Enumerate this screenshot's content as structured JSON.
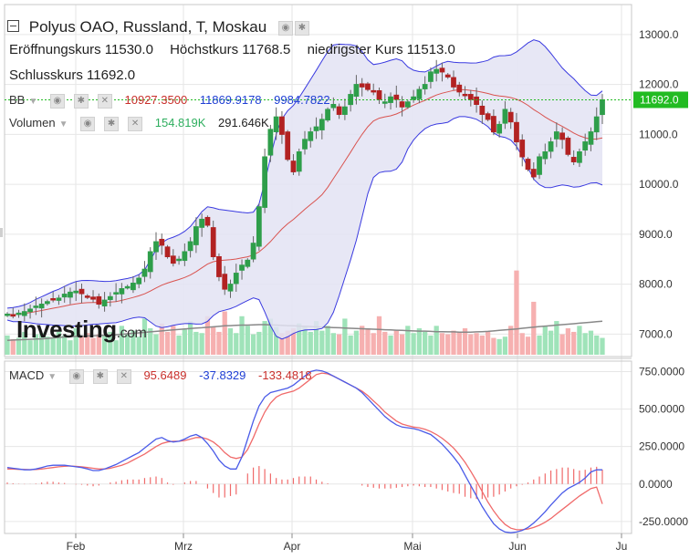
{
  "header": {
    "title": "Polyus OAO, Russland, T, Moskau",
    "open_label": "Eröffnungskurs",
    "open_value": "11530.0",
    "high_label": "Höchstkurs",
    "high_value": "11768.5",
    "low_label": "niedrigster Kurs",
    "low_value": "11513.0",
    "close_label": "Schlusskurs",
    "close_value": "11692.0"
  },
  "indicators": {
    "bb": {
      "label": "BB",
      "middle": "10927.3500",
      "upper": "11869.9178",
      "lower": "9984.7822"
    },
    "volume": {
      "label": "Volumen",
      "value1": "154.819K",
      "value2": "291.646K"
    },
    "macd": {
      "label": "MACD",
      "v1": "95.6489",
      "v2": "-37.8329",
      "v3": "-133.4818"
    }
  },
  "logo": {
    "text": "Investing",
    "suffix": ".com"
  },
  "colors": {
    "up": "#2e9e4a",
    "down": "#b22222",
    "band_fill": "#e3e3f3",
    "band_line": "#3a3ae0",
    "bb_mid": "#d9534f",
    "vol_up": "#9fe3b9",
    "vol_down": "#f6b0b0",
    "vol_ma": "#888888",
    "macd_line": "#4a5be8",
    "signal_line": "#f06a6a",
    "hist": "#f06a6a",
    "last_price": "#22bb22"
  },
  "chart_data": [
    {
      "type": "candlestick",
      "title": "Polyus OAO, Russland, T, Moskau",
      "x_labels": [
        "Feb",
        "Mrz",
        "Apr",
        "Mai",
        "Jun",
        "Ju"
      ],
      "y_ticks": [
        7000,
        8000,
        9000,
        10000,
        11000,
        12000,
        13000
      ],
      "y_tick_labels": [
        "7000.0",
        "8000.0",
        "9000.0",
        "10000.0",
        "11000.0",
        "12000.0",
        "13000.0"
      ],
      "ylim": [
        6550,
        13600
      ],
      "last_price": 11692.0,
      "last_price_label": "11692.0",
      "close": [
        7400,
        7380,
        7420,
        7450,
        7500,
        7560,
        7600,
        7650,
        7700,
        7720,
        7800,
        7840,
        7860,
        7810,
        7740,
        7700,
        7600,
        7680,
        7750,
        7830,
        7910,
        7950,
        8020,
        8120,
        8300,
        8650,
        8850,
        8780,
        8550,
        8420,
        8500,
        8650,
        8850,
        9150,
        9300,
        9180,
        8550,
        8150,
        7900,
        8000,
        8220,
        8380,
        8480,
        8820,
        9550,
        10550,
        11100,
        11350,
        11000,
        10500,
        10250,
        10650,
        10900,
        11050,
        11150,
        11300,
        11500,
        11600,
        11400,
        11550,
        11800,
        12000,
        11950,
        11900,
        11850,
        11700,
        11650,
        11750,
        11700,
        11550,
        11650,
        11750,
        11900,
        12000,
        12250,
        12300,
        12250,
        12150,
        11950,
        11850,
        11800,
        11700,
        11600,
        11400,
        11300,
        11050,
        11200,
        11500,
        11250,
        10850,
        10550,
        10300,
        10150,
        10550,
        10650,
        10850,
        11050,
        10900,
        10600,
        10450,
        10650,
        10850,
        11050,
        11350,
        11692
      ],
      "bb_upper_at_end": 11869.9178,
      "bb_middle_at_end": 10927.35,
      "bb_lower_at_end": 9984.7822
    },
    {
      "type": "bar",
      "name": "Volumen",
      "values": [
        80,
        65,
        70,
        95,
        60,
        85,
        90,
        75,
        70,
        95,
        80,
        60,
        110,
        75,
        90,
        70,
        85,
        80,
        95,
        60,
        120,
        85,
        100,
        75,
        150,
        110,
        85,
        130,
        95,
        120,
        80,
        105,
        140,
        95,
        90,
        160,
        115,
        95,
        180,
        110,
        90,
        160,
        120,
        85,
        95,
        140,
        150,
        115,
        90,
        100,
        110,
        130,
        120,
        95,
        140,
        100,
        120,
        90,
        85,
        150,
        80,
        100,
        120,
        110,
        90,
        160,
        95,
        80,
        100,
        85,
        120,
        90,
        110,
        95,
        80,
        120,
        90,
        85,
        100,
        95,
        110,
        85,
        90,
        80,
        95,
        70,
        65,
        75,
        120,
        350,
        90,
        75,
        220,
        80,
        120,
        100,
        140,
        85,
        110,
        95,
        120,
        90,
        100,
        80,
        70
      ],
      "ma": [
        60,
        61,
        62,
        63,
        64,
        65,
        66,
        68,
        70,
        72,
        74,
        75,
        76,
        77,
        78,
        79,
        80,
        81,
        82,
        83,
        85,
        87,
        89,
        91,
        93,
        95,
        97,
        99,
        101,
        103,
        105,
        107,
        109,
        111,
        112,
        114,
        116,
        118,
        120,
        121,
        122,
        123,
        123,
        124,
        125,
        125,
        124,
        123,
        122,
        121,
        120,
        119,
        118,
        117,
        116,
        115,
        114,
        113,
        112,
        111,
        110,
        109,
        108,
        107,
        106,
        105,
        104,
        103,
        102,
        101,
        100,
        99,
        98,
        98,
        97,
        96,
        96,
        95,
        95,
        94,
        94,
        94,
        95,
        96,
        97,
        99,
        101,
        103,
        105,
        107,
        110,
        112,
        115,
        117,
        119,
        121,
        123,
        125,
        127,
        129,
        131,
        133,
        135,
        137,
        139
      ]
    },
    {
      "type": "line",
      "name": "MACD",
      "y_ticks": [
        -250,
        0,
        250,
        500,
        750
      ],
      "y_tick_labels": [
        "-250.0000",
        "0.0000",
        "250.0000",
        "500.0000",
        "750.0000"
      ],
      "ylim": [
        -330,
        820
      ],
      "macd": [
        110,
        105,
        100,
        95,
        95,
        100,
        110,
        120,
        125,
        125,
        125,
        120,
        115,
        110,
        100,
        90,
        90,
        100,
        115,
        130,
        150,
        170,
        190,
        210,
        240,
        270,
        300,
        310,
        290,
        280,
        285,
        300,
        320,
        330,
        310,
        270,
        220,
        160,
        120,
        100,
        100,
        180,
        300,
        420,
        520,
        580,
        610,
        620,
        630,
        640,
        660,
        690,
        720,
        750,
        760,
        755,
        740,
        720,
        700,
        680,
        660,
        640,
        610,
        570,
        530,
        490,
        450,
        420,
        395,
        380,
        375,
        370,
        360,
        345,
        330,
        300,
        265,
        225,
        180,
        130,
        60,
        -10,
        -80,
        -150,
        -210,
        -265,
        -300,
        -320,
        -325,
        -320,
        -310,
        -290,
        -260,
        -225,
        -185,
        -140,
        -100,
        -60,
        -30,
        -10,
        10,
        40,
        80,
        95,
        95
      ],
      "signal": [
        100,
        100,
        98,
        97,
        96,
        97,
        100,
        105,
        110,
        115,
        118,
        120,
        118,
        115,
        110,
        105,
        100,
        100,
        105,
        115,
        125,
        140,
        160,
        180,
        200,
        225,
        250,
        270,
        280,
        285,
        285,
        290,
        300,
        310,
        310,
        300,
        280,
        250,
        210,
        180,
        170,
        180,
        230,
        310,
        400,
        480,
        540,
        580,
        600,
        610,
        620,
        640,
        670,
        700,
        730,
        740,
        735,
        720,
        700,
        680,
        660,
        640,
        620,
        590,
        555,
        520,
        480,
        450,
        420,
        400,
        390,
        380,
        375,
        365,
        350,
        330,
        305,
        275,
        240,
        195,
        145,
        85,
        20,
        -50,
        -120,
        -180,
        -230,
        -270,
        -295,
        -305,
        -305,
        -300,
        -290,
        -275,
        -255,
        -230,
        -200,
        -170,
        -140,
        -110,
        -80,
        -55,
        -30,
        -20,
        -133
      ],
      "histogram": [
        10,
        5,
        2,
        -2,
        -1,
        3,
        10,
        15,
        15,
        10,
        7,
        0,
        -3,
        -5,
        -10,
        -15,
        -10,
        0,
        10,
        15,
        25,
        30,
        30,
        30,
        40,
        45,
        50,
        40,
        10,
        -5,
        0,
        10,
        20,
        20,
        0,
        -30,
        -60,
        -90,
        -90,
        -80,
        -70,
        0,
        70,
        110,
        120,
        100,
        70,
        40,
        30,
        30,
        40,
        50,
        50,
        50,
        30,
        15,
        5,
        0,
        0,
        0,
        0,
        0,
        -10,
        -20,
        -25,
        -30,
        -30,
        -30,
        -25,
        -20,
        -15,
        -10,
        -15,
        -20,
        -20,
        -30,
        -40,
        -50,
        -60,
        -65,
        -85,
        -95,
        -100,
        -100,
        -90,
        -85,
        -70,
        -50,
        -30,
        -15,
        -5,
        10,
        30,
        50,
        70,
        90,
        100,
        110,
        110,
        100,
        90,
        95,
        110,
        115,
        96
      ]
    }
  ]
}
